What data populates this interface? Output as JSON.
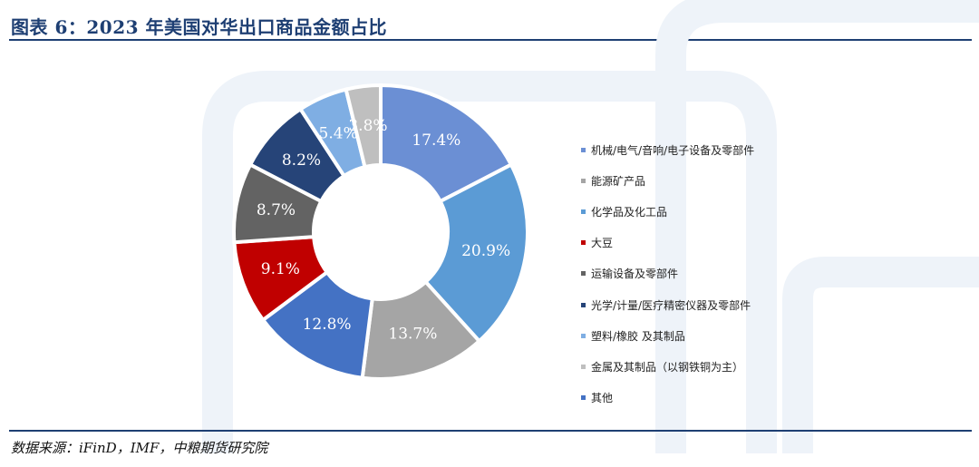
{
  "title": "图表 6：2023 年美国对华出口商品金额占比",
  "source": "数据来源：iFinD，IMF，中粮期货研究院",
  "chart_data": {
    "type": "pie",
    "hole": "donut",
    "legend_position": "right",
    "slices": [
      {
        "label": "机械/电气/音响/电子设备及零部件",
        "value": 17.4,
        "text": "17.4%",
        "color": "#6b8fd4"
      },
      {
        "label": "能源矿产品",
        "value": 13.7,
        "text": "13.7%",
        "color": "#a5a5a5"
      },
      {
        "label": "化学品及化工品",
        "value": 20.9,
        "text": "20.9%",
        "color": "#5b9bd5"
      },
      {
        "label": "大豆",
        "value": 9.1,
        "text": "9.1%",
        "color": "#c00000"
      },
      {
        "label": "运输设备及零部件",
        "value": 8.7,
        "text": "8.7%",
        "color": "#636363"
      },
      {
        "label": "光学/计量/医疗精密仪器及零部件",
        "value": 8.2,
        "text": "8.2%",
        "color": "#264478"
      },
      {
        "label": "塑料/橡胶 及其制品",
        "value": 5.4,
        "text": "5.4%",
        "color": "#7faee3"
      },
      {
        "label": "金属及其制品（以钢铁铜为主）",
        "value": 3.8,
        "text": "3.8%",
        "color": "#bfbfbf"
      },
      {
        "label": "其他",
        "value": 12.8,
        "text": "12.8%",
        "color": "#4472c4"
      }
    ],
    "draw_order": [
      0,
      2,
      1,
      8,
      3,
      4,
      5,
      6,
      7
    ]
  }
}
